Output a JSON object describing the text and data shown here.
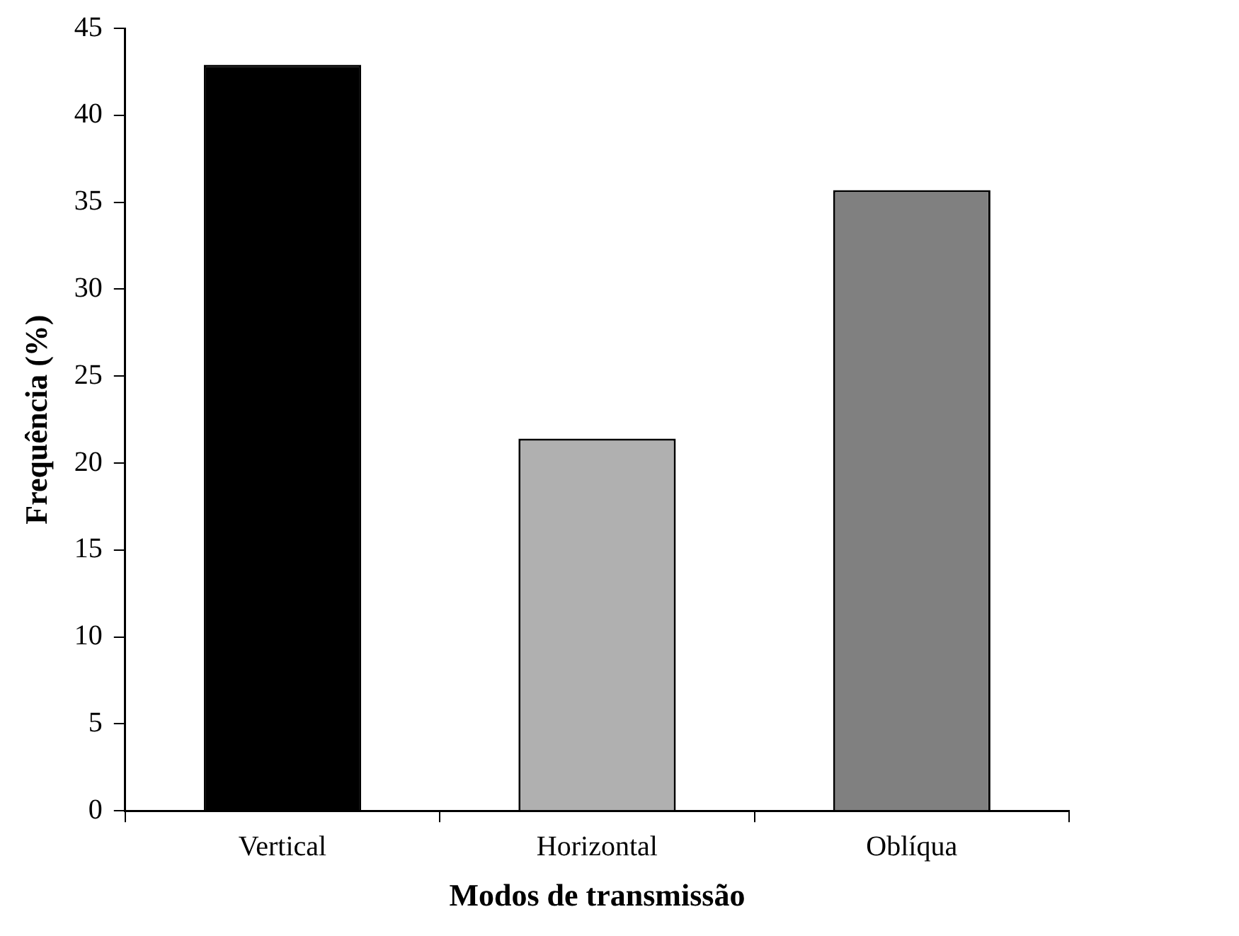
{
  "chart_data": {
    "type": "bar",
    "xlabel": "Modos de transmissão",
    "ylabel": "Frequência (%)",
    "categories": [
      "Vertical",
      "Horizontal",
      "Oblíqua"
    ],
    "values": [
      42.9,
      21.4,
      35.7
    ],
    "colors": [
      "#000000",
      "#b0b0b0",
      "#808080"
    ],
    "ylim": [
      0,
      45
    ],
    "yticks": [
      0,
      5,
      10,
      15,
      20,
      25,
      30,
      35,
      40,
      45
    ],
    "grid": false,
    "legend": false
  }
}
